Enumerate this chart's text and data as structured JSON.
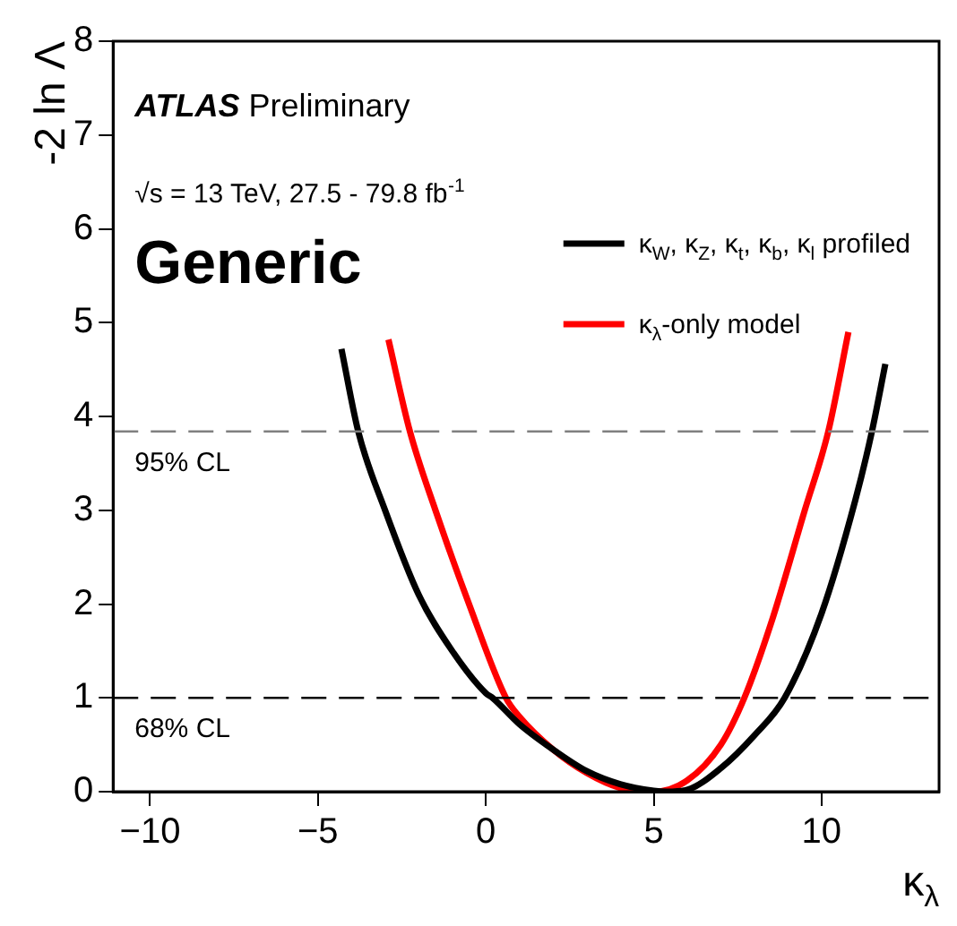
{
  "chart_data": {
    "type": "line",
    "xlabel": "κ$_{λ}$",
    "ylabel": "-2 ln Λ",
    "annotations": [
      "ATLAS Preliminary",
      "√s = 13 TeV, 27.5 - 79.8 fb$^{-1}$",
      "Generic"
    ],
    "xlim": [
      -11.1,
      13.5
    ],
    "ylim": [
      0,
      8
    ],
    "xticks": [
      {
        "value": -10,
        "label": "−10"
      },
      {
        "value": -5,
        "label": "−5"
      },
      0,
      5,
      10
    ],
    "yticks": [
      0,
      1,
      2,
      3,
      4,
      5,
      6,
      7,
      8
    ],
    "legend": "top right",
    "marker": "none",
    "line_style": "solid",
    "ref_lines": [
      {
        "axis": "y",
        "value": 3.84,
        "label": "95% CL",
        "color": "#808080",
        "line_style": "dashed"
      },
      {
        "axis": "y",
        "value": 1,
        "label": "68% CL",
        "color": "#000000",
        "line_style": "dashed"
      }
    ],
    "series": [
      {
        "name": "κ$_{W}$, κ$_{Z}$, κ$_{t}$, κ$_{b}$, κ$_{l}$ profiled",
        "color": "#000000",
        "x": [
          -4.3,
          -3.8,
          -3,
          -2,
          -1,
          0,
          0.2,
          1,
          2,
          3,
          4,
          5,
          5.4,
          6,
          7,
          8,
          8.9,
          10,
          11,
          11.5,
          11.9
        ],
        "values": [
          4.72,
          3.84,
          3.0,
          2.1,
          1.5,
          1.05,
          1.0,
          0.72,
          0.45,
          0.22,
          0.08,
          0.01,
          0,
          0.02,
          0.25,
          0.6,
          1.0,
          1.9,
          3.1,
          3.84,
          4.56
        ]
      },
      {
        "name": "κ$_{λ}$-only model",
        "color": "#ff0000",
        "x": [
          -2.9,
          -2.26,
          -1.5,
          -0.5,
          0.6,
          1,
          2,
          3,
          4,
          5,
          6,
          7,
          7.7,
          8.5,
          9.5,
          10.2,
          10.8
        ],
        "values": [
          4.82,
          3.84,
          3.0,
          2.0,
          1.0,
          0.8,
          0.45,
          0.2,
          0.04,
          0,
          0.12,
          0.5,
          1.0,
          1.8,
          3.0,
          3.84,
          4.9
        ]
      }
    ]
  }
}
